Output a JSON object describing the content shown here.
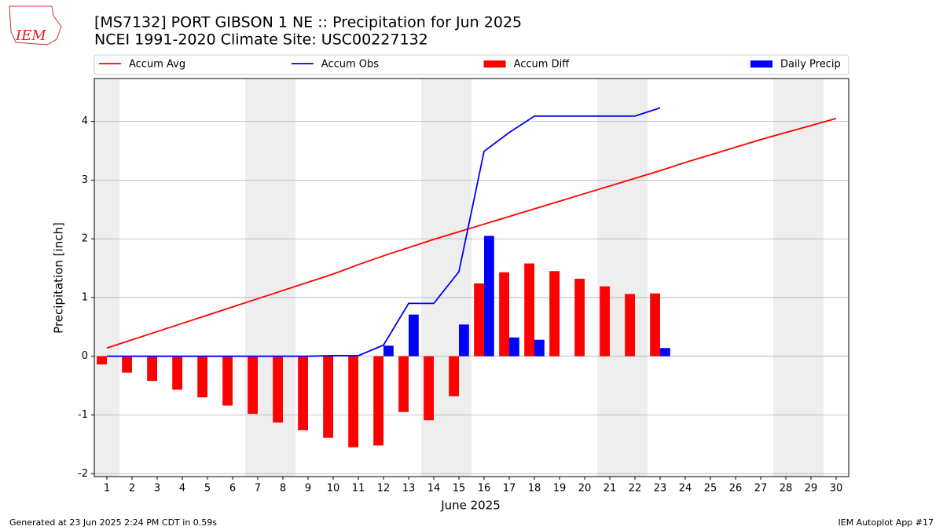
{
  "logo": "IEM",
  "footer_left": "Generated at 23 Jun 2025 2:24 PM CDT in 0.59s",
  "footer_right": "IEM Autoplot App #17",
  "chart_data": {
    "type": "bar",
    "title": "[MS7132] PORT GIBSON 1 NE :: Precipitation for Jun 2025",
    "subtitle": "NCEI 1991-2020 Climate Site: USC00227132",
    "xlabel": "June 2025",
    "ylabel": "Precipitation [inch]",
    "x": [
      1,
      2,
      3,
      4,
      5,
      6,
      7,
      8,
      9,
      10,
      11,
      12,
      13,
      14,
      15,
      16,
      17,
      18,
      19,
      20,
      21,
      22,
      23,
      24,
      25,
      26,
      27,
      28,
      29,
      30
    ],
    "xlim": [
      0.5,
      30.5
    ],
    "xticks": [
      1,
      2,
      3,
      4,
      5,
      6,
      7,
      8,
      9,
      10,
      11,
      12,
      13,
      14,
      15,
      16,
      17,
      18,
      19,
      20,
      21,
      22,
      23,
      24,
      25,
      26,
      27,
      28,
      29,
      30
    ],
    "ylim": [
      -2.05,
      4.73
    ],
    "yticks": [
      -2,
      -1,
      0,
      1,
      2,
      3,
      4
    ],
    "grid": true,
    "legend": "top",
    "weekend_spans": [
      [
        0.5,
        1.5
      ],
      [
        6.5,
        8.5
      ],
      [
        13.5,
        15.5
      ],
      [
        20.5,
        22.5
      ],
      [
        27.5,
        29.5
      ]
    ],
    "series": [
      {
        "name": "Accum Avg",
        "type": "line",
        "color": "#ff0000",
        "values": [
          0.14,
          0.28,
          0.42,
          0.56,
          0.7,
          0.84,
          0.98,
          1.12,
          1.26,
          1.4,
          1.56,
          1.71,
          1.85,
          1.99,
          2.12,
          2.25,
          2.38,
          2.51,
          2.64,
          2.77,
          2.9,
          3.03,
          3.16,
          3.3,
          3.43,
          3.56,
          3.69,
          3.81,
          3.93,
          4.05
        ]
      },
      {
        "name": "Accum Obs",
        "type": "line",
        "color": "#0000ff",
        "values": [
          0,
          0,
          0,
          0,
          0,
          0,
          0,
          0,
          0,
          0.01,
          0.01,
          0.19,
          0.9,
          0.9,
          1.44,
          3.49,
          3.81,
          4.09,
          4.09,
          4.09,
          4.09,
          4.09,
          4.23,
          null,
          null,
          null,
          null,
          null,
          null,
          null
        ]
      },
      {
        "name": "Accum Diff",
        "type": "bar",
        "color": "#ff0000",
        "values": [
          -0.14,
          -0.28,
          -0.42,
          -0.57,
          -0.7,
          -0.84,
          -0.98,
          -1.13,
          -1.26,
          -1.39,
          -1.55,
          -1.52,
          -0.95,
          -1.09,
          -0.68,
          1.24,
          1.43,
          1.58,
          1.45,
          1.32,
          1.19,
          1.06,
          1.07,
          null,
          null,
          null,
          null,
          null,
          null,
          null
        ]
      },
      {
        "name": "Daily Precip",
        "type": "bar",
        "color": "#0000ff",
        "values": [
          0,
          0,
          0,
          0,
          0,
          0,
          0,
          0,
          0,
          0.01,
          0,
          0.18,
          0.71,
          0,
          0.54,
          2.05,
          0.32,
          0.28,
          0,
          0,
          0,
          0,
          0.14,
          null,
          null,
          null,
          null,
          null,
          null,
          null
        ]
      }
    ]
  }
}
